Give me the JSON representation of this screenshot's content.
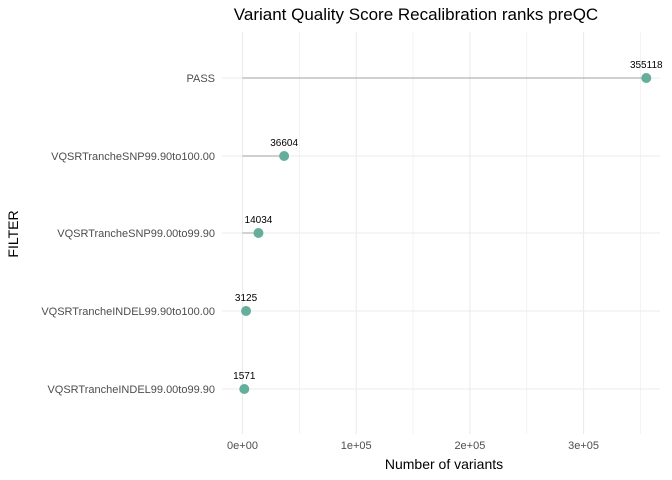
{
  "chart_data": {
    "type": "lollipop",
    "title": "Variant Quality Score Recalibration ranks preQC",
    "xlabel": "Number of variants",
    "ylabel": "FILTER",
    "xlim": [
      0,
      355118
    ],
    "x_ticks": [
      {
        "value": 0,
        "label": "0e+00"
      },
      {
        "value": 100000,
        "label": "1e+05"
      },
      {
        "value": 200000,
        "label": "2e+05"
      },
      {
        "value": 300000,
        "label": "3e+05"
      }
    ],
    "x_minor_ticks": [
      50000,
      150000,
      250000,
      350000
    ],
    "grid": true,
    "categories": [
      "PASS",
      "VQSRTrancheSNP99.90to100.00",
      "VQSRTrancheSNP99.00to99.90",
      "VQSRTrancheINDEL99.90to100.00",
      "VQSRTrancheINDEL99.00to99.90"
    ],
    "values": [
      355118,
      36604,
      14034,
      3125,
      1571
    ],
    "point_color": "#66ae9c",
    "stem_color": "#b3b3b3",
    "grid_color": "#ebebeb"
  }
}
